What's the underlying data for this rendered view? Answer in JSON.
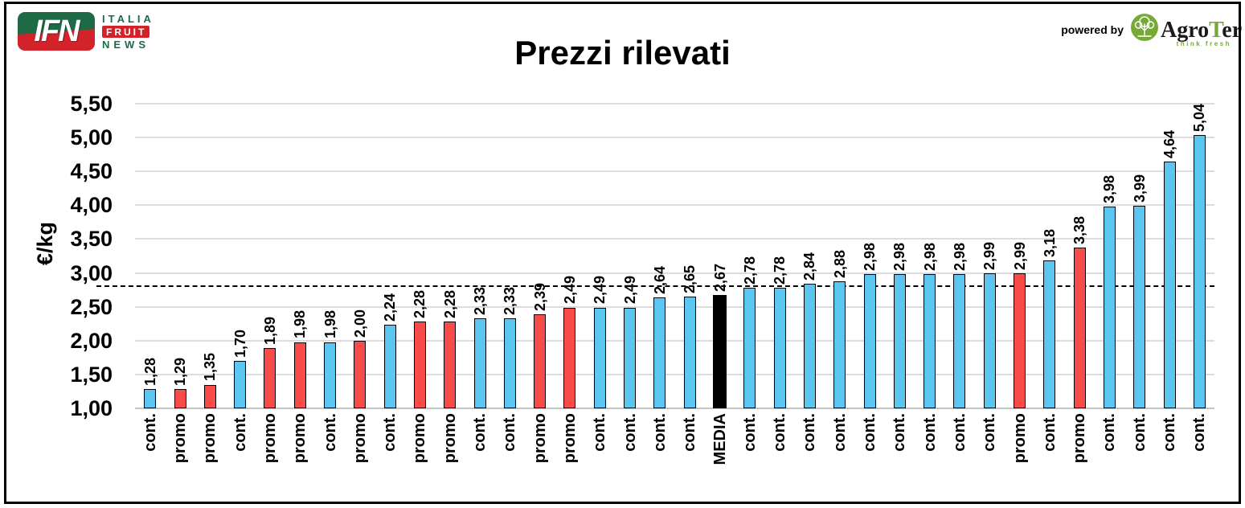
{
  "header": {
    "ifn_logo": {
      "acronym": "IFN",
      "italia": "ITALIA",
      "fruit": "FRUIT",
      "news": "NEWS"
    },
    "title": "Prezzi rilevati",
    "powered_by": "powered by",
    "agroter": {
      "name_part1": "Agro",
      "name_part2": "T",
      "name_part3": "er",
      "tagline": "think fresh"
    }
  },
  "colors": {
    "cont": "#5BC6EF",
    "promo": "#FA4B4B",
    "media": "#000000",
    "ifn_green": "#1E6A47",
    "ifn_red": "#D2232A",
    "agroter_green": "#76A935",
    "gridline": "#DCDCDC",
    "reference_line": "#000000"
  },
  "chart_data": {
    "type": "bar",
    "title": "Prezzi rilevati",
    "xlabel": "",
    "ylabel": "€/kg",
    "ylim": [
      1.0,
      5.5
    ],
    "ytick_step": 0.5,
    "ytick_labels": [
      "1,00",
      "1,50",
      "2,00",
      "2,50",
      "3,00",
      "3,50",
      "4,00",
      "4,50",
      "5,00",
      "5,50"
    ],
    "grid": true,
    "legend_position": "none",
    "reference_line": {
      "value": 2.8,
      "style": "dashed"
    },
    "bars": [
      {
        "category": "cont.",
        "label": "1,28",
        "value": 1.28,
        "kind": "cont"
      },
      {
        "category": "promo",
        "label": "1,29",
        "value": 1.29,
        "kind": "promo"
      },
      {
        "category": "promo",
        "label": "1,35",
        "value": 1.35,
        "kind": "promo"
      },
      {
        "category": "cont.",
        "label": "1,70",
        "value": 1.7,
        "kind": "cont"
      },
      {
        "category": "promo",
        "label": "1,89",
        "value": 1.89,
        "kind": "promo"
      },
      {
        "category": "promo",
        "label": "1,98",
        "value": 1.98,
        "kind": "promo"
      },
      {
        "category": "cont.",
        "label": "1,98",
        "value": 1.98,
        "kind": "cont"
      },
      {
        "category": "promo",
        "label": "2,00",
        "value": 2.0,
        "kind": "promo"
      },
      {
        "category": "cont.",
        "label": "2,24",
        "value": 2.24,
        "kind": "cont"
      },
      {
        "category": "promo",
        "label": "2,28",
        "value": 2.28,
        "kind": "promo"
      },
      {
        "category": "promo",
        "label": "2,28",
        "value": 2.28,
        "kind": "promo"
      },
      {
        "category": "cont.",
        "label": "2,33",
        "value": 2.33,
        "kind": "cont"
      },
      {
        "category": "cont.",
        "label": "2,33",
        "value": 2.33,
        "kind": "cont"
      },
      {
        "category": "promo",
        "label": "2,39",
        "value": 2.39,
        "kind": "promo"
      },
      {
        "category": "promo",
        "label": "2,49",
        "value": 2.49,
        "kind": "promo"
      },
      {
        "category": "cont.",
        "label": "2,49",
        "value": 2.49,
        "kind": "cont"
      },
      {
        "category": "cont.",
        "label": "2,49",
        "value": 2.49,
        "kind": "cont"
      },
      {
        "category": "cont.",
        "label": "2,64",
        "value": 2.64,
        "kind": "cont"
      },
      {
        "category": "cont.",
        "label": "2,65",
        "value": 2.65,
        "kind": "cont"
      },
      {
        "category": "MEDIA",
        "label": "2,67",
        "value": 2.67,
        "kind": "media"
      },
      {
        "category": "cont.",
        "label": "2,78",
        "value": 2.78,
        "kind": "cont"
      },
      {
        "category": "cont.",
        "label": "2,78",
        "value": 2.78,
        "kind": "cont"
      },
      {
        "category": "cont.",
        "label": "2,84",
        "value": 2.84,
        "kind": "cont"
      },
      {
        "category": "cont.",
        "label": "2,88",
        "value": 2.88,
        "kind": "cont"
      },
      {
        "category": "cont.",
        "label": "2,98",
        "value": 2.98,
        "kind": "cont"
      },
      {
        "category": "cont.",
        "label": "2,98",
        "value": 2.98,
        "kind": "cont"
      },
      {
        "category": "cont.",
        "label": "2,98",
        "value": 2.98,
        "kind": "cont"
      },
      {
        "category": "cont.",
        "label": "2,98",
        "value": 2.98,
        "kind": "cont"
      },
      {
        "category": "cont.",
        "label": "2,99",
        "value": 2.99,
        "kind": "cont"
      },
      {
        "category": "promo",
        "label": "2,99",
        "value": 2.99,
        "kind": "promo"
      },
      {
        "category": "cont.",
        "label": "3,18",
        "value": 3.18,
        "kind": "cont"
      },
      {
        "category": "promo",
        "label": "3,38",
        "value": 3.38,
        "kind": "promo"
      },
      {
        "category": "cont.",
        "label": "3,98",
        "value": 3.98,
        "kind": "cont"
      },
      {
        "category": "cont.",
        "label": "3,99",
        "value": 3.99,
        "kind": "cont"
      },
      {
        "category": "cont.",
        "label": "4,64",
        "value": 4.64,
        "kind": "cont"
      },
      {
        "category": "cont.",
        "label": "5,04",
        "value": 5.04,
        "kind": "cont"
      }
    ]
  }
}
